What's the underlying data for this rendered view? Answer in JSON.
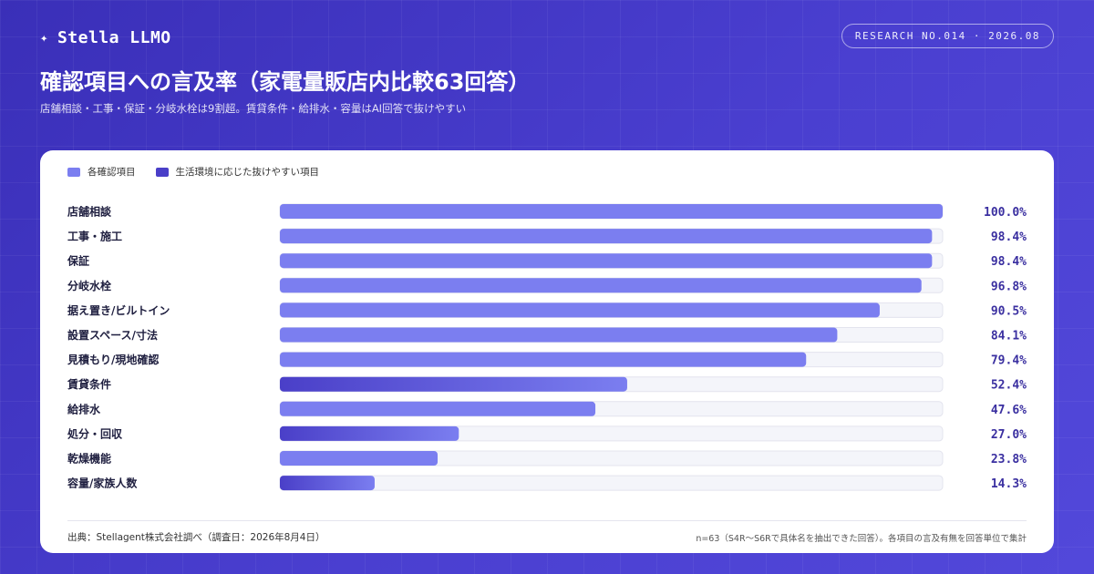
{
  "header": {
    "brand": "Stella LLMO",
    "brand_icon": "sparkle-icon",
    "badge": "RESEARCH NO.014 · 2026.08",
    "title": "確認項目への言及率（家電量販店内比較63回答）",
    "subtitle": "店舗相談・工事・保証・分岐水栓は9割超。賃貸条件・給排水・容量はAI回答で抜けやすい"
  },
  "legend": [
    {
      "label": "各確認項目",
      "color": "#7b7ef0"
    },
    {
      "label": "生活環境に応じた抜けやすい項目",
      "color": "#4a3fc8"
    }
  ],
  "chart_data": {
    "type": "bar",
    "orientation": "horizontal",
    "xlim": [
      0,
      100
    ],
    "unit": "%",
    "categories": [
      "店舗相談",
      "工事・施工",
      "保証",
      "分岐水栓",
      "据え置き/ビルトイン",
      "設置スペース/寸法",
      "見積もり/現地確認",
      "賃貸条件",
      "給排水",
      "処分・回収",
      "乾燥機能",
      "容量/家族人数"
    ],
    "series": [
      {
        "name": "各確認項目",
        "values": [
          100.0,
          98.4,
          98.4,
          96.8,
          90.5,
          84.1,
          79.4,
          52.4,
          47.6,
          27.0,
          23.8,
          14.3
        ]
      }
    ],
    "highlight": [
      false,
      false,
      false,
      false,
      false,
      false,
      false,
      true,
      false,
      true,
      false,
      true
    ],
    "value_labels": [
      "100.0%",
      "98.4%",
      "98.4%",
      "96.8%",
      "90.5%",
      "84.1%",
      "79.4%",
      "52.4%",
      "47.6%",
      "27.0%",
      "23.8%",
      "14.3%"
    ],
    "colors": {
      "base": "#7b7ef0",
      "highlight_start": "#4a3fc8",
      "highlight_end": "#7b7ef0",
      "track": "#f4f5fa",
      "value_text": "#3a2fa0"
    }
  },
  "footer": {
    "source": "出典：Stellagent株式会社調べ（調査日：2026年8月4日）",
    "note": "n=63（S4R〜S6Rで具体名を抽出できた回答）。各項目の言及有無を回答単位で集計"
  }
}
